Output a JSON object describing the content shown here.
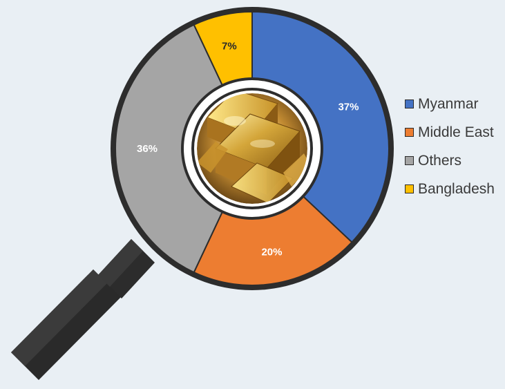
{
  "chart_data": {
    "type": "pie",
    "title": "",
    "categories": [
      "Myanmar",
      "Middle East",
      "Others",
      "Bangladesh"
    ],
    "values": [
      37,
      20,
      36,
      7
    ],
    "labels": [
      "37%",
      "20%",
      "36%",
      "7%"
    ],
    "colors": [
      "#4472c4",
      "#ed7d31",
      "#a5a5a5",
      "#ffc000"
    ],
    "legend_position": "right"
  },
  "legend": {
    "items": [
      {
        "label": "Myanmar",
        "color": "#4472c4"
      },
      {
        "label": "Middle East",
        "color": "#ed7d31"
      },
      {
        "label": "Others",
        "color": "#a5a5a5"
      },
      {
        "label": "Bangladesh",
        "color": "#ffc000"
      }
    ]
  }
}
